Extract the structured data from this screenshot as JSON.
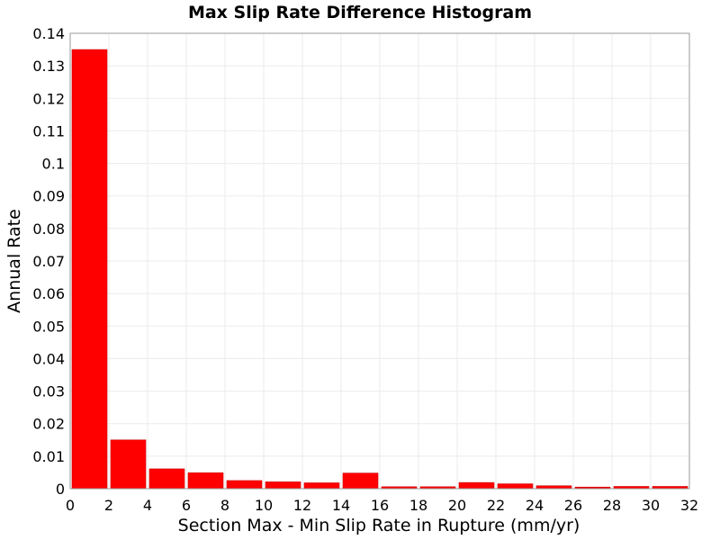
{
  "chart_data": {
    "type": "bar",
    "title": "Max Slip Rate Difference Histogram",
    "xlabel": "Section Max - Min Slip Rate in Rupture (mm/yr)",
    "ylabel": "Annual Rate",
    "xlim": [
      0,
      32
    ],
    "ylim": [
      0,
      0.14
    ],
    "bin_width": 2,
    "x_ticks": [
      "0",
      "2",
      "4",
      "6",
      "8",
      "10",
      "12",
      "14",
      "16",
      "18",
      "20",
      "22",
      "24",
      "26",
      "28",
      "30",
      "32"
    ],
    "y_ticks": [
      "0",
      "0.01",
      "0.02",
      "0.03",
      "0.04",
      "0.05",
      "0.06",
      "0.07",
      "0.08",
      "0.09",
      "0.1",
      "0.11",
      "0.12",
      "0.13",
      "0.14"
    ],
    "bins": [
      {
        "x0": 0,
        "x1": 2,
        "value": 0.135
      },
      {
        "x0": 2,
        "x1": 4,
        "value": 0.015
      },
      {
        "x0": 4,
        "x1": 6,
        "value": 0.0061
      },
      {
        "x0": 6,
        "x1": 8,
        "value": 0.0049
      },
      {
        "x0": 8,
        "x1": 10,
        "value": 0.0025
      },
      {
        "x0": 10,
        "x1": 12,
        "value": 0.0021
      },
      {
        "x0": 12,
        "x1": 14,
        "value": 0.0018
      },
      {
        "x0": 14,
        "x1": 16,
        "value": 0.0048
      },
      {
        "x0": 16,
        "x1": 18,
        "value": 0.0006
      },
      {
        "x0": 18,
        "x1": 20,
        "value": 0.0006
      },
      {
        "x0": 20,
        "x1": 22,
        "value": 0.0019
      },
      {
        "x0": 22,
        "x1": 24,
        "value": 0.0015
      },
      {
        "x0": 24,
        "x1": 26,
        "value": 0.0009
      },
      {
        "x0": 26,
        "x1": 28,
        "value": 0.0005
      },
      {
        "x0": 28,
        "x1": 30,
        "value": 0.0007
      },
      {
        "x0": 30,
        "x1": 32,
        "value": 0.0007
      }
    ],
    "grid": true,
    "bar_color": "#ff0000",
    "bar_outline_color": "#cc0000"
  }
}
